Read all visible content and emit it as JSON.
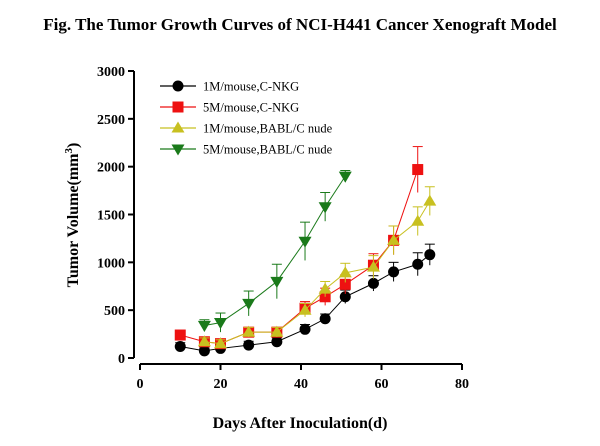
{
  "chart_data": {
    "type": "line",
    "title": "Fig. The Tumor Growth Curves of NCI-H441 Cancer Xenograft Model",
    "xlabel": "Days After Inoculation(d)",
    "ylabel_main": "Tumor Volume(mm",
    "ylabel_sup": "3",
    "ylabel_end": ")",
    "xlim": [
      0,
      80
    ],
    "ylim": [
      0,
      3000
    ],
    "xticks": [
      0,
      20,
      40,
      60,
      80
    ],
    "yticks": [
      0,
      500,
      1000,
      1500,
      2000,
      2500,
      3000
    ],
    "legend_position": "top-center",
    "grid": false,
    "series": [
      {
        "name": "1M/mouse,C-NKG",
        "marker": "circle",
        "color": "#000000",
        "x": [
          10,
          16,
          20,
          27,
          34,
          41,
          46,
          51,
          58,
          63,
          69,
          72
        ],
        "y": [
          120,
          75,
          100,
          135,
          170,
          300,
          410,
          640,
          780,
          900,
          980,
          1080
        ],
        "err": [
          40,
          30,
          35,
          40,
          40,
          50,
          50,
          70,
          80,
          100,
          120,
          110
        ]
      },
      {
        "name": "5M/mouse,C-NKG",
        "marker": "square",
        "color": "#ee1111",
        "x": [
          10,
          16,
          20,
          27,
          34,
          41,
          46,
          51,
          58,
          63,
          69
        ],
        "y": [
          240,
          170,
          150,
          270,
          270,
          520,
          640,
          770,
          970,
          1230,
          1970
        ],
        "err": [
          50,
          40,
          45,
          50,
          50,
          70,
          90,
          100,
          120,
          150,
          240
        ]
      },
      {
        "name": "1M/mouse,BABL/C nude",
        "marker": "triangle-up",
        "color": "#c8c020",
        "x": [
          16,
          20,
          27,
          34,
          41,
          46,
          51,
          58,
          63,
          69,
          72
        ],
        "y": [
          170,
          150,
          270,
          270,
          500,
          720,
          890,
          950,
          1230,
          1430,
          1640
        ],
        "err": [
          40,
          40,
          50,
          50,
          70,
          80,
          100,
          120,
          150,
          150,
          150
        ]
      },
      {
        "name": "5M/mouse,BABL/C nude",
        "marker": "triangle-down",
        "color": "#1a7a1a",
        "x": [
          16,
          20,
          27,
          34,
          41,
          46,
          51
        ],
        "y": [
          340,
          370,
          570,
          800,
          1220,
          1580,
          1900
        ],
        "err": [
          60,
          100,
          130,
          180,
          200,
          150,
          60
        ]
      }
    ]
  }
}
